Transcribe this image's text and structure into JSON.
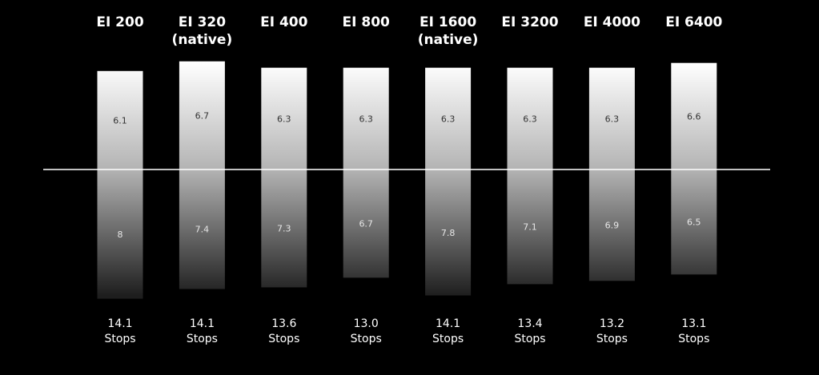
{
  "chart_data": {
    "type": "bar",
    "categories": [
      [
        "EI 200"
      ],
      [
        "EI 320",
        "(native)"
      ],
      [
        "EI 400"
      ],
      [
        "EI 800"
      ],
      [
        "EI 1600",
        "(native)"
      ],
      [
        "EI 3200"
      ],
      [
        "EI 4000"
      ],
      [
        "EI 6400"
      ]
    ],
    "series": [
      {
        "values": [
          6.1,
          6.7,
          6.3,
          6.3,
          6.3,
          6.3,
          6.3,
          6.6
        ]
      },
      {
        "values": [
          8,
          7.4,
          7.3,
          6.7,
          7.8,
          7.1,
          6.9,
          6.5
        ]
      }
    ],
    "totals": [
      "14.1",
      "14.1",
      "13.6",
      "13.0",
      "14.1",
      "13.4",
      "13.2",
      "13.1"
    ],
    "total_unit": "Stops",
    "colors": {
      "background": "#000000",
      "bar_top": "#ffffff",
      "bar_mid": "#b3b3b3",
      "bar_bottom": "#1e1e1e",
      "baseline": "#ffffff",
      "text": "#ffffff"
    },
    "grid": false
  }
}
